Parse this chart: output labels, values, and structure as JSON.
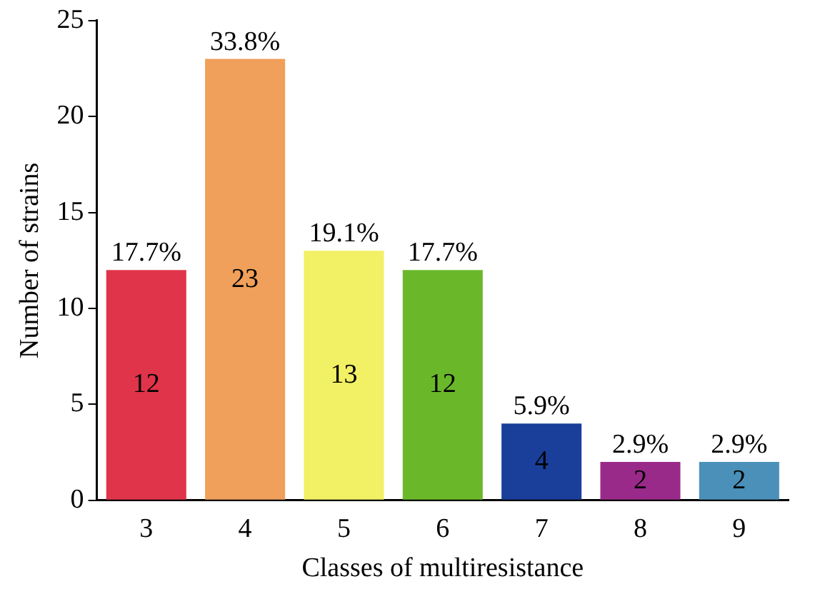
{
  "chart_data": {
    "type": "bar",
    "xlabel": "Classes of multiresistance",
    "ylabel": "Number of strains",
    "categories": [
      "3",
      "4",
      "5",
      "6",
      "7",
      "8",
      "9"
    ],
    "values": [
      12,
      23,
      13,
      12,
      4,
      2,
      2
    ],
    "colors": [
      "#e0344a",
      "#f0a05a",
      "#f2f064",
      "#6ab82a",
      "#1a3f9a",
      "#9a2a8a",
      "#4a90b8"
    ],
    "ylim": [
      0,
      25
    ],
    "yticks": [
      0,
      5,
      10,
      15,
      20,
      25
    ],
    "grid": false,
    "legend": false,
    "data_labels": true,
    "annotations": [
      {
        "text": "17.7%",
        "x": "3",
        "y": 12
      },
      {
        "text": "33.8%",
        "x": "4",
        "y": 23
      },
      {
        "text": "19.1%",
        "x": "5",
        "y": 13
      },
      {
        "text": "17.7%",
        "x": "6",
        "y": 12
      },
      {
        "text": "5.9%",
        "x": "7",
        "y": 4
      },
      {
        "text": "2.9%",
        "x": "8",
        "y": 2
      },
      {
        "text": "2.9%",
        "x": "9",
        "y": 2
      }
    ]
  }
}
